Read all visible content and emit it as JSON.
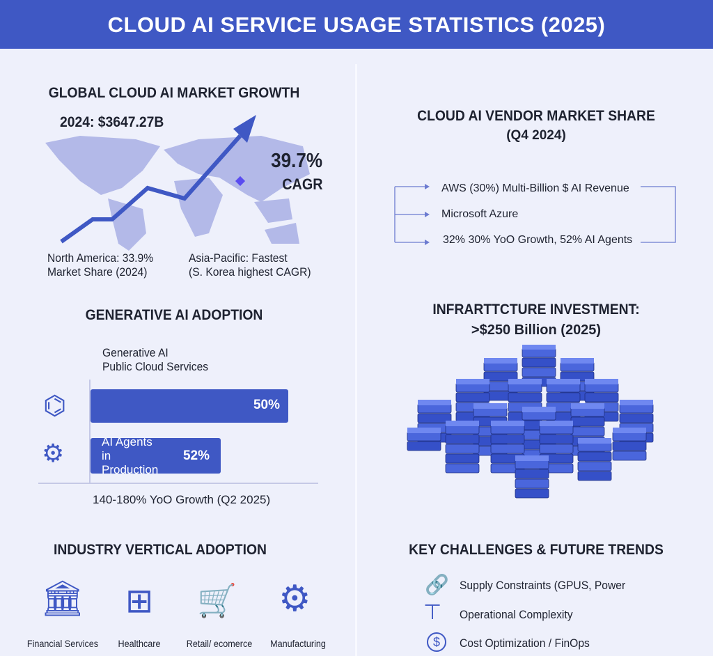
{
  "title": "CLOUD AI SERVICE USAGE STATISTICS (2025)",
  "market_growth": {
    "heading": "GLOBAL CLOUD AI MARKET GROWTH",
    "value": "2024: $3647.27B",
    "cagr": "39.7%",
    "cagr_label": "CAGR",
    "north_america_1": "North America: 33.9%",
    "north_america_2": "Market Share (2024)",
    "apac_1": "Asia-Pacific: Fastest",
    "apac_2": "(S. Korea highest CAGR)"
  },
  "vendor": {
    "heading": "CLOUD AI VENDOR MARKET SHARE",
    "subheading": "(Q4 2024)",
    "items": [
      "AWS (30%) Multi-Billion $ AI Revenue",
      "Microsoft Azure",
      "32% 30% YoO Growth, 52% AI Agents"
    ]
  },
  "genai": {
    "heading": "GENERATIVE AI ADOPTION",
    "bar1_title_1": "Generative AI",
    "bar1_title_2": "Public Cloud Services",
    "bar1_value": "50%",
    "bar1_pct": 50,
    "bar2_label_1": "AI Agents",
    "bar2_label_2": "in Production",
    "bar2_value": "52%",
    "bar2_pct": 52,
    "footer": "140-180% YoO Growth (Q2 2025)"
  },
  "infra": {
    "heading_1": "INFRARTTCTURE INVESTMENT:",
    "heading_2": ">$250 Billion (2025)"
  },
  "industry": {
    "heading": "INDUSTRY VERTICAL ADOPTION",
    "items": [
      "Financial Services",
      "Healthcare",
      "Retail/ ecomerce",
      "Manufacturing"
    ]
  },
  "challenges": {
    "heading": "KEY CHALLENGES & FUTURE TRENDS",
    "items": [
      "Supply Constraints (GPUS, Power",
      "Operational Complexity",
      "Cost Optimization / FinOps"
    ]
  },
  "colors": {
    "accent": "#3f58c4",
    "map": "#b3b9e8",
    "background": "#eef0fb"
  }
}
